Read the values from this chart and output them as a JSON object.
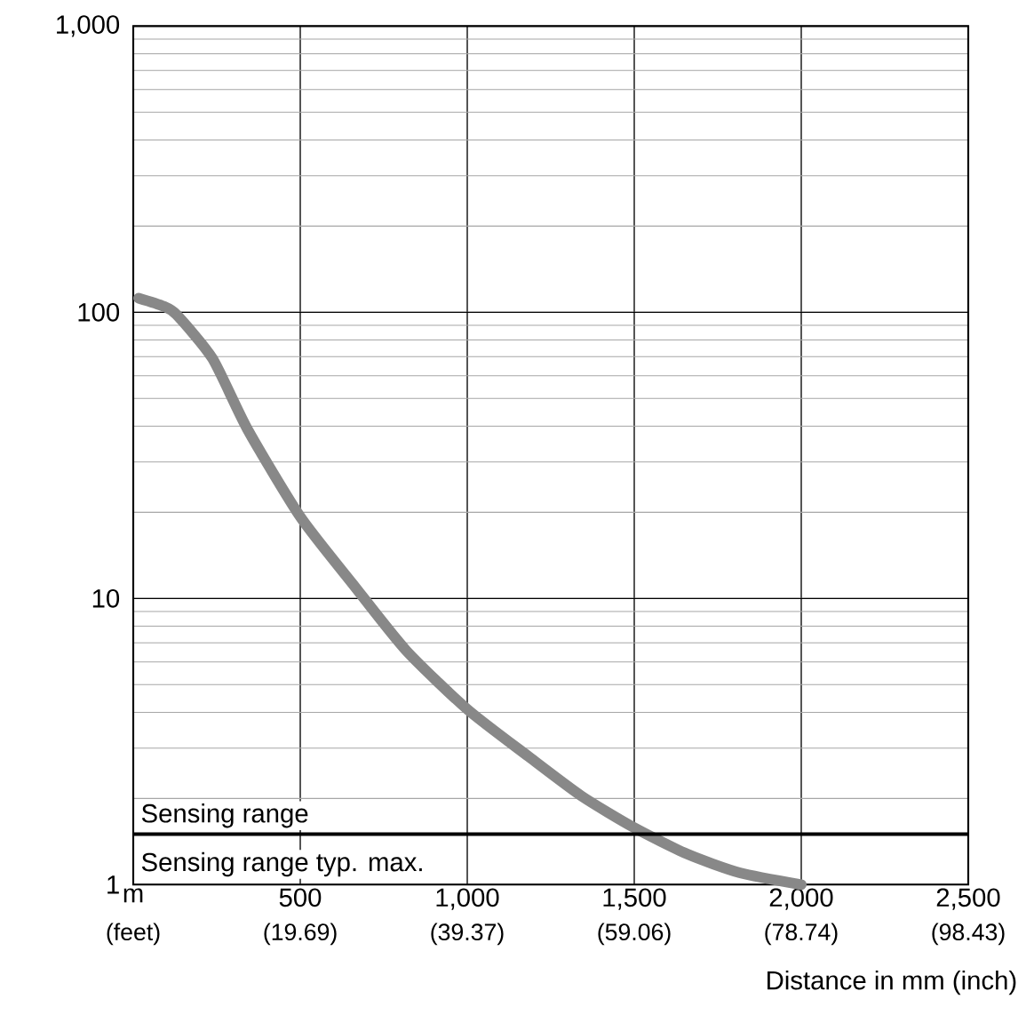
{
  "chart_data": {
    "type": "line",
    "xlabel": "Distance in mm (inch)",
    "series": [
      {
        "color": "#888888",
        "x": [
          16,
          90,
          130,
          237,
          342,
          500,
          658,
          816,
          1000,
          1184,
          1342,
          1500,
          1658,
          1816,
          2000
        ],
        "values": [
          112,
          105,
          98,
          69,
          39,
          19.3,
          11.2,
          6.6,
          4.1,
          2.8,
          2.04,
          1.58,
          1.28,
          1.1,
          1.0
        ]
      }
    ],
    "xlim": [
      0,
      2500
    ],
    "xticks": [
      {
        "value": 0,
        "label": "m"
      },
      500,
      {
        "value": 1000,
        "label": "1,000"
      },
      {
        "value": 1500,
        "label": "1,500"
      },
      {
        "value": 2000,
        "label": "2,000"
      },
      {
        "value": 2500,
        "label": "2,500"
      }
    ],
    "x2lim": [
      0,
      98.43
    ],
    "x2ticks": [
      {
        "value": 0,
        "label": "(feet)"
      },
      {
        "value": 19.69,
        "label": "(19.69)"
      },
      {
        "value": 39.37,
        "label": "(39.37)"
      },
      {
        "value": 59.06,
        "label": "(59.06)"
      },
      {
        "value": 78.74,
        "label": "(78.74)"
      },
      {
        "value": 98.43,
        "label": "(98.43)"
      }
    ],
    "ylim": [
      1,
      1000
    ],
    "yticks": [
      1,
      10,
      100,
      {
        "value": 1000,
        "label": "1,000"
      }
    ],
    "log": "y",
    "grid": true,
    "marker": "none",
    "line_style": "solid",
    "ref_lines": [
      {
        "axis": "y",
        "value": 1.5,
        "label": "Sensing range"
      }
    ],
    "annotations": [
      "Sensing range typ. max."
    ]
  }
}
